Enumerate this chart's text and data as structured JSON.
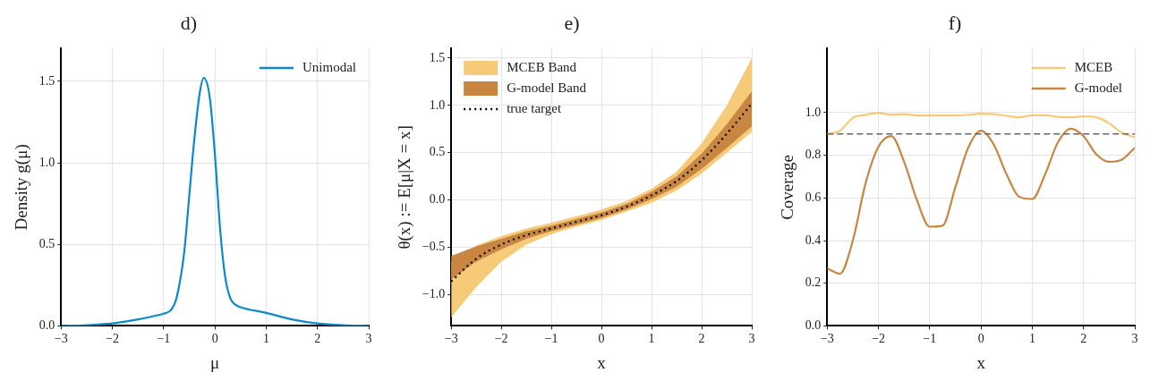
{
  "chart_data": [
    {
      "type": "line",
      "title": "d)",
      "xlabel": "μ",
      "ylabel": "Density g(μ)",
      "xlim": [
        -3,
        3
      ],
      "ylim": [
        0,
        1.7
      ],
      "xticks": [
        {
          "value": -3,
          "label": "−3"
        },
        {
          "value": -2,
          "label": "−2"
        },
        {
          "value": -1,
          "label": "−1"
        },
        0,
        1,
        2,
        3
      ],
      "yticks": [
        {
          "value": 0,
          "label": "0.0"
        },
        0.5,
        {
          "value": 1,
          "label": "1.0"
        },
        1.5
      ],
      "grid": true,
      "legend": "top right",
      "x": [
        -3,
        -2.5,
        -2,
        -1.5,
        -1.2,
        -1,
        -0.85,
        -0.75,
        -0.6,
        -0.5,
        -0.4,
        -0.3,
        -0.22,
        -0.1,
        0,
        0.1,
        0.2,
        0.3,
        0.4,
        0.5,
        1,
        1.5,
        2,
        2.5,
        3
      ],
      "series": [
        {
          "name": "Unimodal",
          "color": "#0a8acb",
          "values": [
            0,
            0.005,
            0.015,
            0.04,
            0.06,
            0.075,
            0.1,
            0.17,
            0.45,
            0.8,
            1.15,
            1.42,
            1.52,
            1.4,
            1.05,
            0.6,
            0.3,
            0.17,
            0.13,
            0.115,
            0.08,
            0.04,
            0.015,
            0.004,
            0
          ]
        }
      ]
    },
    {
      "type": "line",
      "title": "e)",
      "xlabel": "x",
      "ylabel": "θ(x) := E[μ|X = x]",
      "xlim": [
        -3,
        3
      ],
      "ylim": [
        -1.33,
        1.6
      ],
      "xticks": [
        {
          "value": -3,
          "label": "−3"
        },
        {
          "value": -2,
          "label": "−2"
        },
        {
          "value": -1,
          "label": "−1"
        },
        0,
        1,
        2,
        3
      ],
      "yticks": [
        {
          "value": -1,
          "label": "−1.0"
        },
        {
          "value": -0.5,
          "label": "−0.5"
        },
        {
          "value": 0,
          "label": "0.0"
        },
        0.5,
        {
          "value": 1,
          "label": "1.0"
        },
        1.5
      ],
      "grid": true,
      "legend": "top left",
      "x": [
        -3,
        -2.5,
        -2,
        -1.5,
        -1,
        -0.5,
        0,
        0.5,
        1,
        1.5,
        2,
        2.5,
        3
      ],
      "series": [
        {
          "name": "MCEB Band",
          "type": "area",
          "color": "#f5cb7a",
          "values": [
            null,
            null,
            null,
            null,
            null,
            null,
            null,
            null,
            null,
            null,
            null,
            null,
            null
          ],
          "lower": [
            -1.24,
            -0.92,
            -0.65,
            -0.47,
            -0.36,
            -0.28,
            -0.21,
            -0.12,
            -0.03,
            0.1,
            0.28,
            0.5,
            0.72
          ],
          "upper": [
            -0.65,
            -0.48,
            -0.38,
            -0.3,
            -0.24,
            -0.17,
            -0.1,
            -0.01,
            0.12,
            0.3,
            0.6,
            1.0,
            1.5
          ]
        },
        {
          "name": "G-model Band",
          "type": "area",
          "color": "#c98641",
          "values": [
            null,
            null,
            null,
            null,
            null,
            null,
            null,
            null,
            null,
            null,
            null,
            null,
            null
          ],
          "lower": [
            -0.84,
            -0.65,
            -0.52,
            -0.41,
            -0.33,
            -0.26,
            -0.19,
            -0.1,
            0.01,
            0.14,
            0.33,
            0.55,
            0.78
          ],
          "upper": [
            -0.59,
            -0.49,
            -0.41,
            -0.33,
            -0.27,
            -0.2,
            -0.13,
            -0.04,
            0.09,
            0.25,
            0.49,
            0.8,
            1.15
          ]
        },
        {
          "name": "true target",
          "type": "line",
          "color": "#000000",
          "line_style": "dotted",
          "values": [
            -0.86,
            -0.62,
            -0.47,
            -0.37,
            -0.3,
            -0.23,
            -0.16,
            -0.07,
            0.05,
            0.2,
            0.42,
            0.7,
            1.02
          ]
        }
      ]
    },
    {
      "type": "line",
      "title": "f)",
      "xlabel": "x",
      "ylabel": "Coverage",
      "xlim": [
        -3,
        3
      ],
      "ylim": [
        0,
        1.3
      ],
      "xticks": [
        {
          "value": -3,
          "label": "−3"
        },
        {
          "value": -2,
          "label": "−2"
        },
        {
          "value": -1,
          "label": "−1"
        },
        0,
        1,
        2,
        3
      ],
      "yticks": [
        {
          "value": 0,
          "label": "0.0"
        },
        0.2,
        0.4,
        0.6,
        0.8,
        {
          "value": 1,
          "label": "1.0"
        }
      ],
      "grid": true,
      "legend": "top right",
      "ref_lines": [
        {
          "axis": "y",
          "value": 0.9,
          "color": "#666666",
          "line_style": "dashed"
        }
      ],
      "x": [
        -3,
        -2.75,
        -2.5,
        -2.25,
        -2,
        -1.75,
        -1.5,
        -1.25,
        -1,
        -0.75,
        -0.5,
        -0.25,
        0,
        0.25,
        0.5,
        0.75,
        1,
        1.25,
        1.5,
        1.75,
        2,
        2.25,
        2.5,
        2.75,
        3
      ],
      "series": [
        {
          "name": "MCEB",
          "color": "#f5cb7a",
          "values": [
            0.9,
            0.915,
            0.975,
            0.99,
            0.998,
            0.99,
            0.993,
            0.987,
            0.987,
            0.987,
            0.987,
            0.99,
            0.995,
            0.993,
            0.985,
            0.978,
            0.988,
            0.988,
            0.98,
            0.978,
            0.983,
            0.978,
            0.95,
            0.905,
            0.885
          ]
        },
        {
          "name": "G-model",
          "color": "#c98641",
          "values": [
            0.27,
            0.245,
            0.4,
            0.67,
            0.84,
            0.89,
            0.77,
            0.59,
            0.465,
            0.47,
            0.65,
            0.835,
            0.915,
            0.85,
            0.71,
            0.605,
            0.595,
            0.71,
            0.86,
            0.925,
            0.89,
            0.805,
            0.77,
            0.78,
            0.835
          ]
        }
      ]
    }
  ]
}
